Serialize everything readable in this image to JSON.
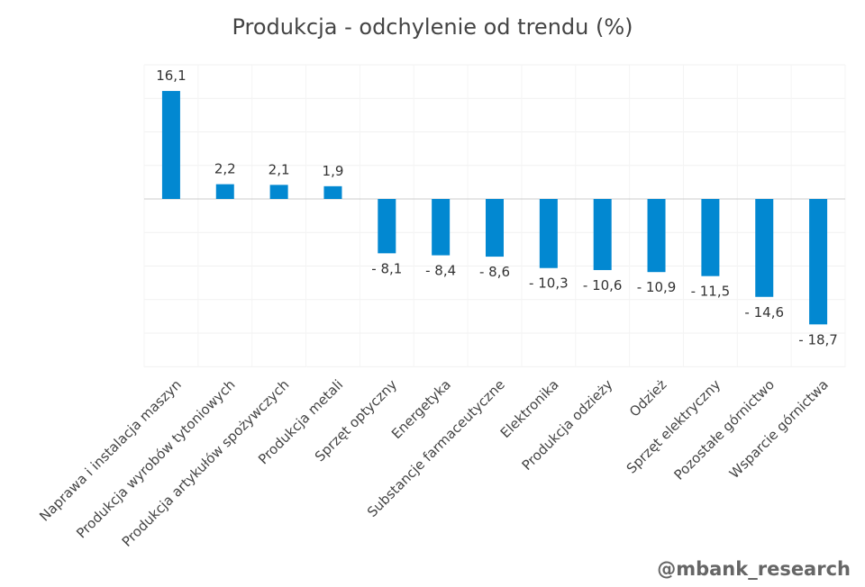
{
  "title": "Produkcja - odchylenie od trendu (%)",
  "watermark": "@mbank_research",
  "chart_data": {
    "type": "bar",
    "title": "Produkcja - odchylenie od trendu (%)",
    "xlabel": "",
    "ylabel": "",
    "categories": [
      "Naprawa i instalacja maszyn",
      "Produkcja wyrobów tytoniowych",
      "Produkcja artykułów spożywczych",
      "Produkcja metali",
      "Sprzęt optyczny",
      "Energetyka",
      "Substancje farmaceutyczne",
      "Elektronika",
      "Produkcja odzieży",
      "Odzież",
      "Sprzęt elektryczny",
      "Pozostałe górnictwo",
      "Wsparcie górnictwa"
    ],
    "values": [
      16.1,
      2.2,
      2.1,
      1.9,
      -8.1,
      -8.4,
      -8.6,
      -10.3,
      -10.6,
      -10.9,
      -11.5,
      -14.6,
      -18.7
    ],
    "value_labels": [
      "16,1",
      "2,2",
      "2,1",
      "1,9",
      "- 8,1",
      "- 8,4",
      "- 8,6",
      "- 10,3",
      "- 10,6",
      "- 10,9",
      "- 11,5",
      "- 14,6",
      "- 18,7"
    ],
    "ylim": [
      -25,
      20
    ],
    "grid": true,
    "legend": "none",
    "bar_color": "#0288d1"
  }
}
